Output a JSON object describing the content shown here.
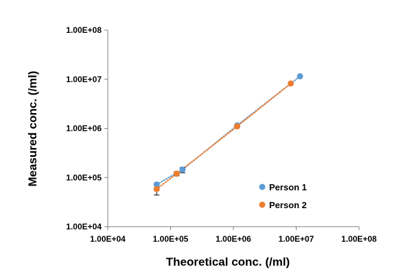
{
  "chart_data": {
    "type": "scatter",
    "x_scale": "log",
    "y_scale": "log",
    "xlabel": "Theoretical conc. (/ml)",
    "ylabel": "Measured conc.  (/ml)",
    "xlim": [
      10000,
      100000000
    ],
    "ylim": [
      10000,
      100000000
    ],
    "x_tick_labels": [
      "1.00E+04",
      "1.00E+05",
      "1.00E+06",
      "1.00E+07",
      "1.00E+08"
    ],
    "y_tick_labels": [
      "1.00E+04",
      "1.00E+05",
      "1.00E+06",
      "1.00E+07",
      "1.00E+08"
    ],
    "grid": false,
    "legend_position": "right",
    "series": [
      {
        "name": "Person 1",
        "color": "#5B9BD5",
        "trendline": "dotted",
        "points": [
          {
            "x": 60000,
            "y": 72000,
            "err_low": 60000,
            "err_high": 76000
          },
          {
            "x": 155000,
            "y": 145000,
            "err_low": 125000,
            "err_high": 160000
          },
          {
            "x": 1150000,
            "y": 1150000
          },
          {
            "x": 11500000,
            "y": 11500000
          }
        ]
      },
      {
        "name": "Person 2",
        "color": "#ED7D31",
        "trendline": "dotted",
        "points": [
          {
            "x": 60000,
            "y": 58000,
            "err_low": 44000,
            "err_high": 68000
          },
          {
            "x": 125000,
            "y": 120000,
            "err_low": 108000,
            "err_high": 132000
          },
          {
            "x": 1150000,
            "y": 1100000
          },
          {
            "x": 8200000,
            "y": 8200000
          }
        ]
      }
    ]
  }
}
